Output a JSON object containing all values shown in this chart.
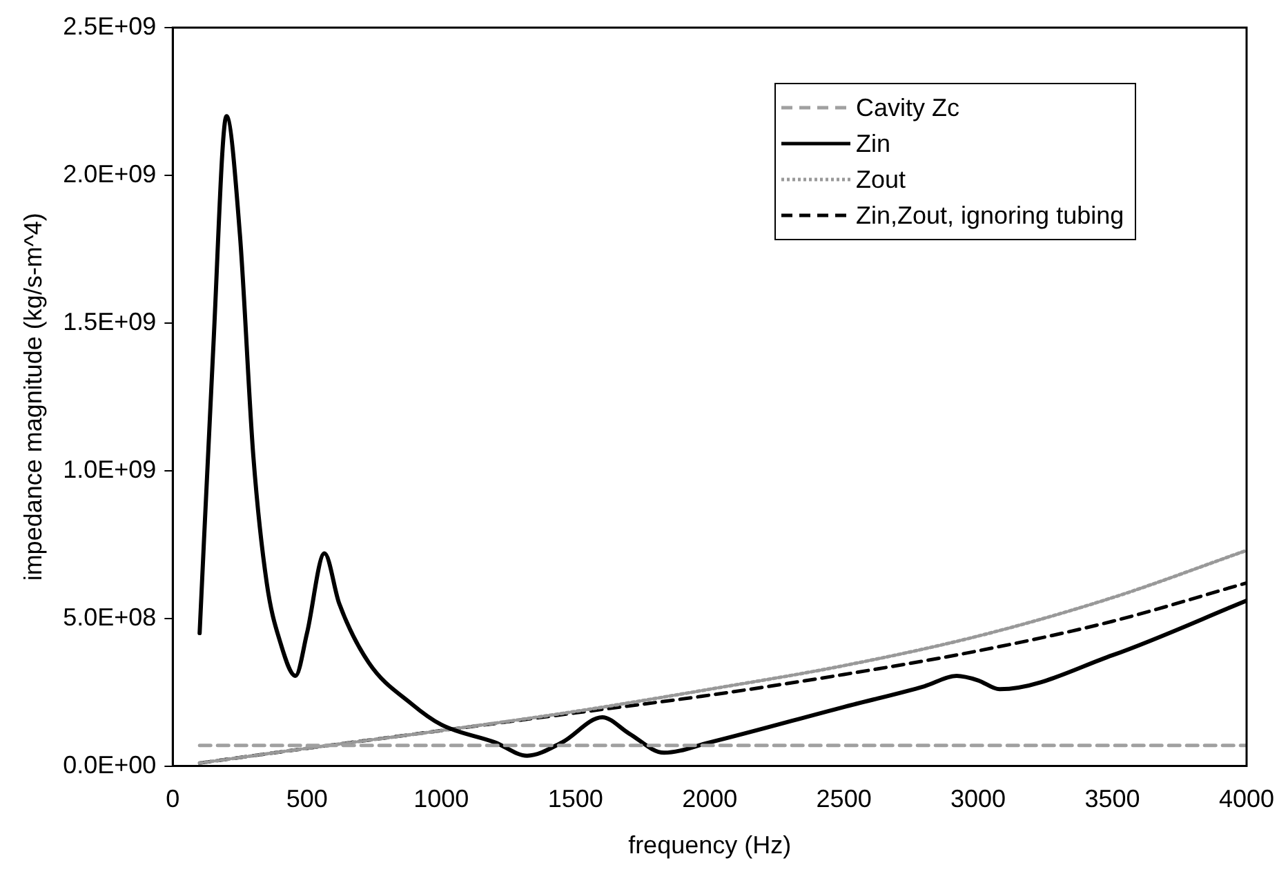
{
  "chart_data": {
    "type": "line",
    "xlabel": "frequency (Hz)",
    "ylabel": "impedance magnitude (kg/s-m^4)",
    "xlim": [
      0,
      4000
    ],
    "xticks": [
      0,
      500,
      1000,
      1500,
      2000,
      2500,
      3000,
      3500,
      4000
    ],
    "ylim": [
      0,
      2500000000
    ],
    "yticks": [
      {
        "value": 0,
        "label": "0.0E+00"
      },
      {
        "value": 500000000,
        "label": "5.0E+08"
      },
      {
        "value": 1000000000,
        "label": "1.0E+09"
      },
      {
        "value": 1500000000,
        "label": "1.5E+09"
      },
      {
        "value": 2000000000,
        "label": "2.0E+09"
      },
      {
        "value": 2500000000,
        "label": "2.5E+09"
      }
    ],
    "grid": false,
    "legend": "top right",
    "marker": "none",
    "series": [
      {
        "name": "Cavity Zc",
        "color": "#a0a0a0",
        "line_style": "dashed",
        "x": [
          100,
          4000
        ],
        "values": [
          70000000,
          70000000
        ]
      },
      {
        "name": "Zin",
        "color": "#000000",
        "line_style": "solid",
        "x": [
          100,
          150,
          200,
          250,
          300,
          350,
          400,
          457,
          500,
          565,
          620,
          730,
          890,
          1000,
          1200,
          1320,
          1450,
          1600,
          1700,
          1830,
          2000,
          2500,
          2800,
          2920,
          3000,
          3080,
          3500,
          4000
        ],
        "values": [
          450000000,
          1400000000,
          2200000000,
          1800000000,
          1050000000,
          620000000,
          420000000,
          305000000,
          450000000,
          720000000,
          550000000,
          350000000,
          210000000,
          140000000,
          80000000,
          35000000,
          80000000,
          165000000,
          110000000,
          45000000,
          80000000,
          200000000,
          270000000,
          305000000,
          290000000,
          260000000,
          375000000,
          560000000
        ]
      },
      {
        "name": "Zout",
        "color": "#999999",
        "line_style": "dotted",
        "x": [
          100,
          500,
          1000,
          1500,
          2000,
          2500,
          3000,
          3500,
          4000
        ],
        "values": [
          10000000,
          60000000,
          120000000,
          185000000,
          260000000,
          340000000,
          440000000,
          570000000,
          730000000
        ]
      },
      {
        "name": "Zin,Zout, ignoring tubing",
        "color": "#000000",
        "line_style": "dashed",
        "x": [
          100,
          500,
          1000,
          1500,
          2000,
          2500,
          3000,
          3500,
          4000
        ],
        "values": [
          10000000,
          60000000,
          120000000,
          180000000,
          240000000,
          310000000,
          390000000,
          490000000,
          620000000
        ]
      }
    ]
  }
}
